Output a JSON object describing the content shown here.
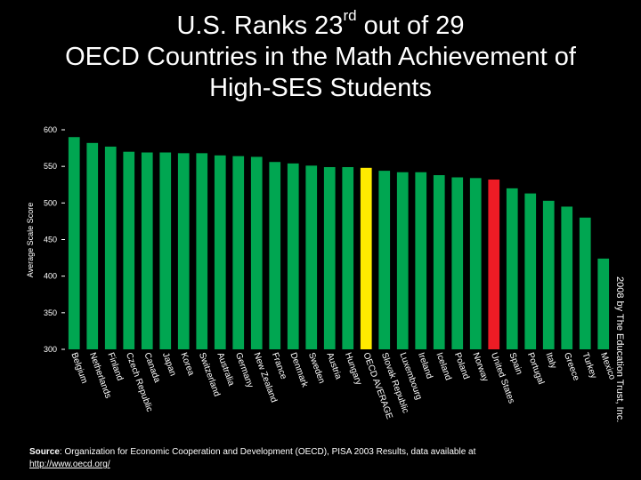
{
  "title": {
    "line1_prefix": "U.S. Ranks 23",
    "line1_sup": "rd",
    "line1_suffix": " out of 29",
    "line2": "OECD Countries in the Math Achievement of",
    "line3": "High-SES Students"
  },
  "colors": {
    "background": "#000000",
    "bar_default": "#00a651",
    "bar_average": "#ffea00",
    "bar_us": "#ee1c25",
    "plot_area": "#000000",
    "axis_text": "#ffffff"
  },
  "chart_data": {
    "type": "bar",
    "title": "U.S. Ranks 23rd out of 29 OECD Countries in the Math Achievement of High-SES Students",
    "xlabel": "",
    "ylabel": "Average Scale Score",
    "ylim": [
      300,
      600
    ],
    "yticks": [
      300,
      350,
      400,
      450,
      500,
      550,
      600
    ],
    "grid": false,
    "categories": [
      "Belgium",
      "Netherlands",
      "Finland",
      "Czech Republic",
      "Canada",
      "Japan",
      "Korea",
      "Switzerland",
      "Australia",
      "Germany",
      "New Zealand",
      "France",
      "Denmark",
      "Sweden",
      "Austria",
      "Hungary",
      "OECD AVERAGE",
      "Slovak Republic",
      "Luxembourg",
      "Ireland",
      "Iceland",
      "Poland",
      "Norway",
      "United States",
      "Spain",
      "Portugal",
      "Italy",
      "Greece",
      "Turkey",
      "Mexico"
    ],
    "values": [
      590,
      582,
      577,
      570,
      569,
      569,
      568,
      568,
      565,
      564,
      563,
      556,
      554,
      551,
      549,
      549,
      548,
      544,
      542,
      542,
      538,
      535,
      534,
      532,
      520,
      513,
      503,
      495,
      480,
      424
    ],
    "highlight": {
      "United States": "bar_us",
      "OECD AVERAGE": "bar_average"
    }
  },
  "source": {
    "label": "Source",
    "text": ": Organization for Economic Cooperation and Development (OECD), PISA 2003 Results, data available at",
    "link": "http://www.oecd.org/"
  },
  "credit": "2008 by The Education Trust, Inc."
}
